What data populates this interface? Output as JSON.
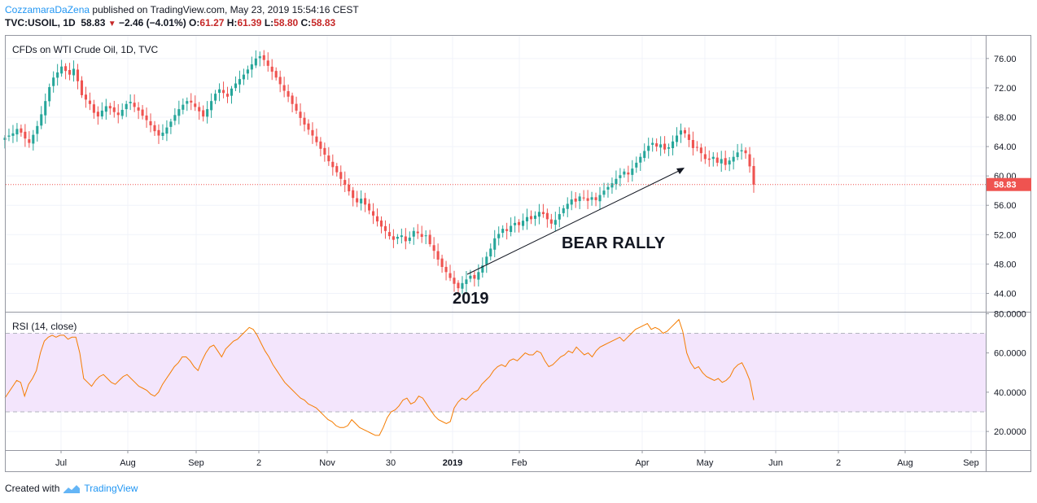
{
  "header": {
    "author": "CozzamaraDaZena",
    "published_text": "published on TradingView.com, May 23, 2019 15:54:16 CEST",
    "symbol": "TVC:USOIL, 1D",
    "last": "58.83",
    "change": "−2.46 (−4.01%)",
    "o_label": "O:",
    "o_value": "61.27",
    "h_label": "H:",
    "h_value": "61.39",
    "l_label": "L:",
    "l_value": "58.80",
    "c_label": "C:",
    "c_value": "58.83"
  },
  "footer": {
    "created_with": "Created with",
    "brand": "TradingView"
  },
  "colors": {
    "up": "#26a69a",
    "down": "#ef5350",
    "rsi_line": "#f57c00",
    "rsi_band": "#f3e5fc",
    "price_line": "#ef5350",
    "arrow": "#131722"
  },
  "chart_data": [
    {
      "type": "candlestick",
      "title": "CFDs on WTI Crude Oil, 1D, TVC",
      "price_ticks": [
        "76.00",
        "72.00",
        "68.00",
        "64.00",
        "60.00",
        "56.00",
        "52.00",
        "48.00",
        "44.00"
      ],
      "ylim": [
        41.5,
        79.2
      ],
      "last_price_label": "58.83",
      "x_ticks": [
        "Jul",
        "Aug",
        "Sep",
        "2",
        "Nov",
        "30",
        "2019",
        "Feb",
        "Apr",
        "May",
        "Jun",
        "2",
        "Aug",
        "Sep"
      ],
      "annotations": [
        "BEAR RALLY",
        "2019"
      ],
      "closes": [
        65.2,
        65.5,
        65.8,
        66.4,
        65.9,
        65.1,
        64.5,
        65.6,
        66.8,
        68.4,
        70.2,
        72.1,
        73.4,
        74.1,
        74.9,
        74.3,
        73.8,
        74.6,
        72.9,
        71.0,
        70.4,
        69.8,
        68.6,
        68.1,
        68.9,
        69.5,
        69.2,
        68.7,
        68.3,
        69.0,
        69.8,
        70.1,
        69.4,
        68.9,
        68.2,
        67.6,
        66.9,
        66.1,
        65.5,
        65.9,
        66.6,
        67.4,
        68.3,
        69.1,
        69.7,
        70.2,
        70.0,
        69.4,
        68.8,
        68.1,
        69.1,
        70.2,
        71.2,
        71.8,
        71.3,
        70.8,
        71.9,
        72.6,
        73.2,
        73.8,
        74.5,
        75.2,
        76.0,
        76.3,
        75.8,
        75.0,
        74.2,
        73.4,
        72.5,
        71.6,
        70.8,
        69.8,
        68.9,
        67.9,
        67.0,
        66.3,
        65.5,
        64.6,
        63.7,
        62.9,
        62.0,
        61.2,
        60.5,
        59.6,
        58.8,
        57.9,
        57.0,
        56.4,
        56.9,
        56.1,
        55.3,
        54.6,
        53.8,
        53.1,
        52.5,
        51.8,
        51.3,
        51.7,
        51.9,
        51.1,
        51.6,
        52.5,
        52.2,
        51.7,
        51.9,
        50.7,
        49.8,
        48.6,
        47.6,
        46.9,
        46.1,
        45.3,
        44.7,
        45.4,
        45.9,
        46.4,
        46.0,
        46.9,
        47.8,
        49.0,
        50.1,
        51.5,
        52.1,
        52.8,
        52.5,
        53.2,
        53.6,
        53.3,
        53.9,
        54.4,
        54.1,
        54.6,
        55.1,
        54.8,
        54.1,
        53.5,
        54.0,
        54.8,
        55.6,
        56.2,
        56.8,
        56.5,
        57.2,
        57.0,
        56.6,
        57.1,
        56.7,
        57.4,
        58.0,
        58.5,
        59.0,
        59.6,
        60.1,
        60.6,
        60.2,
        61.0,
        61.8,
        62.6,
        63.4,
        64.1,
        64.5,
        64.0,
        64.3,
        63.6,
        63.9,
        64.7,
        65.5,
        66.2,
        65.8,
        64.9,
        63.8,
        63.9,
        63.1,
        62.3,
        62.2,
        62.6,
        61.8,
        62.3,
        61.5,
        62.1,
        62.6,
        63.2,
        63.5,
        63.1,
        61.3,
        58.8
      ]
    },
    {
      "type": "line",
      "title": "RSI (14, close)",
      "ticks": [
        "80.0000",
        "60.0000",
        "40.0000",
        "20.0000"
      ],
      "ylim": [
        10.5,
        81
      ],
      "band": [
        30,
        70
      ],
      "values": [
        37,
        40,
        43,
        46,
        45,
        38,
        44,
        47,
        51,
        60,
        66,
        68,
        69,
        68,
        69,
        69,
        67,
        68,
        68,
        60,
        47,
        45,
        43,
        46,
        48,
        49,
        47,
        45,
        44,
        46,
        48,
        49,
        47,
        45,
        43,
        42,
        41,
        39,
        38,
        40,
        44,
        47,
        50,
        53,
        55,
        58,
        58,
        56,
        53,
        51,
        56,
        60,
        63,
        64,
        61,
        58,
        62,
        64,
        66,
        67,
        69,
        71,
        73,
        72,
        69,
        65,
        61,
        58,
        54,
        51,
        48,
        45,
        43,
        41,
        39,
        37,
        36,
        34,
        33,
        32,
        30,
        28,
        26,
        25,
        23,
        22,
        22,
        23,
        26,
        24,
        22,
        21,
        20,
        19,
        18,
        18,
        22,
        27,
        30,
        31,
        33,
        36,
        37,
        34,
        35,
        38,
        37,
        34,
        31,
        28,
        26,
        25,
        24,
        25,
        32,
        35,
        37,
        36,
        38,
        40,
        41,
        44,
        46,
        48,
        51,
        53,
        54,
        53,
        56,
        57,
        56,
        58,
        60,
        59,
        59,
        61,
        60,
        56,
        53,
        54,
        56,
        58,
        59,
        61,
        60,
        63,
        61,
        59,
        60,
        58,
        61,
        63,
        64,
        65,
        66,
        67,
        68,
        66,
        68,
        70,
        72,
        73,
        74,
        75,
        72,
        73,
        72,
        70,
        71,
        73,
        75,
        77,
        71,
        60,
        55,
        52,
        53,
        50,
        48,
        47,
        46,
        47,
        45,
        46,
        48,
        52,
        54,
        55,
        51,
        46,
        36
      ]
    }
  ]
}
